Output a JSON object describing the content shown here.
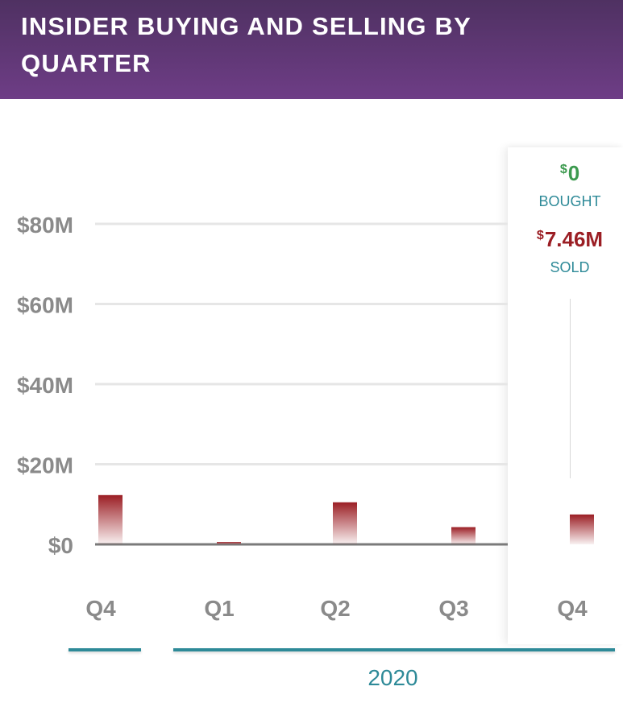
{
  "header": {
    "title": "INSIDER BUYING AND SELLING BY QUARTER"
  },
  "tooltip": {
    "bought_currency": "$",
    "bought_value": "0",
    "bought_label": "BOUGHT",
    "sold_currency": "$",
    "sold_value": "7.46M",
    "sold_label": "SOLD"
  },
  "year_label": "2020",
  "colors": {
    "header_top": "#4f3162",
    "header_bottom": "#6e3d86",
    "sold": "#9b1e24",
    "bought": "#3c9a4f",
    "accent": "#2e8a98"
  },
  "chart_data": {
    "type": "bar",
    "categories": [
      "Q4",
      "Q1",
      "Q2",
      "Q3",
      "Q4"
    ],
    "series": [
      {
        "name": "SOLD",
        "values": [
          12.3,
          0.6,
          10.5,
          4.3,
          7.46
        ]
      },
      {
        "name": "BOUGHT",
        "values": [
          0,
          0,
          0,
          0,
          0
        ]
      }
    ],
    "y_ticks": [
      {
        "value": 0,
        "label": "$0"
      },
      {
        "value": 20,
        "label": "$20M"
      },
      {
        "value": 40,
        "label": "$40M"
      },
      {
        "value": 60,
        "label": "$60M"
      },
      {
        "value": 80,
        "label": "$80M"
      }
    ],
    "ylim": [
      0,
      80
    ],
    "grid": true,
    "highlighted_category": 4
  }
}
